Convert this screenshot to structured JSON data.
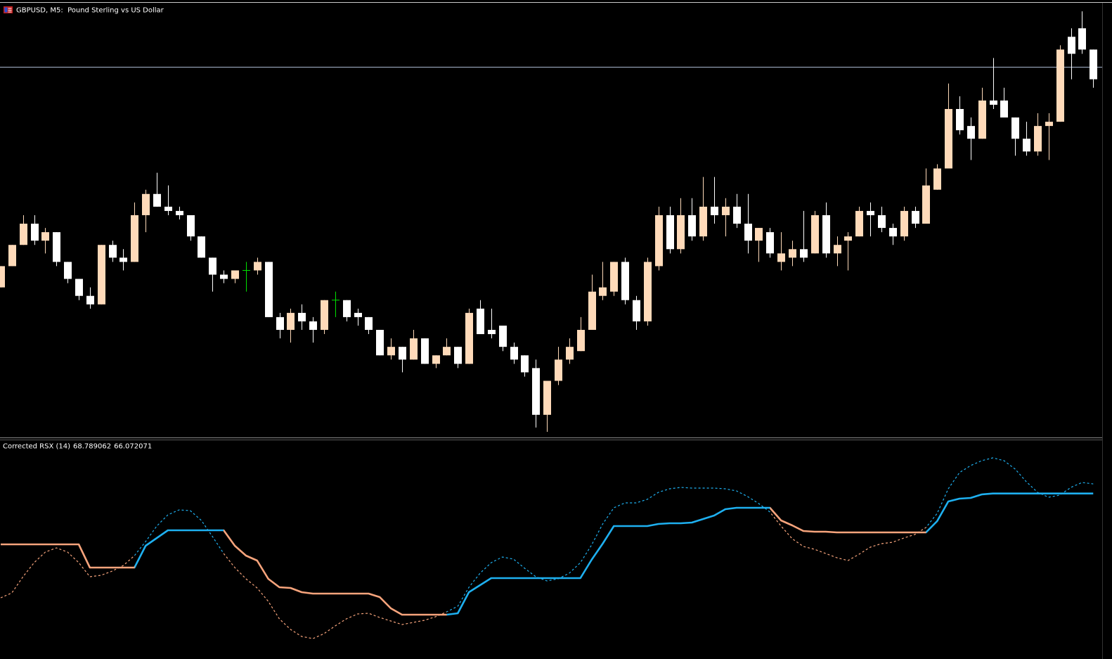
{
  "chart_data": [
    {
      "type": "candlestick",
      "title": "GBPUSD, M5:  Pound Sterling vs US Dollar",
      "open": [
        1.2637,
        1.2642,
        1.2647,
        1.2652,
        1.2648,
        1.265,
        1.2643,
        1.2639,
        1.2635,
        1.2633,
        1.2647,
        1.2644,
        1.2643,
        1.2654,
        1.2659,
        1.2656,
        1.2655,
        1.2654,
        1.2649,
        1.2644,
        1.264,
        1.2639,
        1.2641,
        1.2641,
        1.2643,
        1.263,
        1.2627,
        1.2631,
        1.2629,
        1.2627,
        1.2634,
        1.2634,
        1.2631,
        1.263,
        1.2627,
        1.2621,
        1.2623,
        1.262,
        1.2625,
        1.2619,
        1.2621,
        1.2623,
        1.2619,
        1.2632,
        1.2627,
        1.2628,
        1.2623,
        1.2621,
        1.2618,
        1.2607,
        1.2615,
        1.262,
        1.2622,
        1.2627,
        1.2635,
        1.2636,
        1.2643,
        1.2634,
        1.2629,
        1.2642,
        1.2654,
        1.2646,
        1.2654,
        1.2649,
        1.2656,
        1.2654,
        1.2656,
        1.2652,
        1.2648,
        1.265,
        1.2643,
        1.2644,
        1.2646,
        1.2645,
        1.2654,
        1.2645,
        1.2648,
        1.2649,
        1.2655,
        1.2654,
        1.2651,
        1.2649,
        1.2655,
        1.2652,
        1.266,
        1.2665,
        1.2679,
        1.2675,
        1.2672,
        1.2681,
        1.2681,
        1.2677,
        1.2672,
        1.2669,
        1.2675,
        1.2676,
        1.2696,
        1.2698,
        1.2693
      ],
      "high": [
        1.2642,
        1.2647,
        1.2654,
        1.2654,
        1.2651,
        1.265,
        1.2643,
        1.2639,
        1.2637,
        1.2647,
        1.2648,
        1.2646,
        1.2657,
        1.266,
        1.2664,
        1.2661,
        1.2656,
        1.2654,
        1.2649,
        1.2644,
        1.2641,
        1.2641,
        1.2643,
        1.2644,
        1.2643,
        1.2631,
        1.2632,
        1.2633,
        1.263,
        1.2634,
        1.2636,
        1.2634,
        1.2632,
        1.263,
        1.2627,
        1.2625,
        1.2623,
        1.2627,
        1.2625,
        1.2621,
        1.2625,
        1.2623,
        1.2632,
        1.2634,
        1.2632,
        1.2628,
        1.2624,
        1.2621,
        1.262,
        1.2615,
        1.2623,
        1.2625,
        1.263,
        1.264,
        1.2643,
        1.2643,
        1.2644,
        1.2635,
        1.2644,
        1.2656,
        1.2656,
        1.2658,
        1.2658,
        1.2663,
        1.2663,
        1.2658,
        1.2659,
        1.2659,
        1.2651,
        1.2651,
        1.265,
        1.2648,
        1.2655,
        1.2655,
        1.2657,
        1.2649,
        1.265,
        1.2656,
        1.2657,
        1.2656,
        1.2652,
        1.2656,
        1.2656,
        1.2665,
        1.2666,
        1.2685,
        1.2682,
        1.2677,
        1.2684,
        1.2691,
        1.2684,
        1.2677,
        1.2676,
        1.2678,
        1.2678,
        1.2694,
        1.2698,
        1.2702,
        1.2693
      ],
      "low": [
        1.2637,
        1.2642,
        1.2647,
        1.2647,
        1.2645,
        1.2642,
        1.2638,
        1.2634,
        1.2632,
        1.2633,
        1.2643,
        1.2641,
        1.2643,
        1.265,
        1.2656,
        1.2654,
        1.2653,
        1.2648,
        1.2644,
        1.2636,
        1.2638,
        1.2638,
        1.2636,
        1.264,
        1.263,
        1.2625,
        1.2624,
        1.2627,
        1.2624,
        1.2626,
        1.263,
        1.2629,
        1.2628,
        1.2626,
        1.2621,
        1.262,
        1.2617,
        1.262,
        1.2619,
        1.2618,
        1.2621,
        1.2618,
        1.2619,
        1.2626,
        1.2625,
        1.2622,
        1.2619,
        1.2616,
        1.2604,
        1.2603,
        1.2614,
        1.2619,
        1.2622,
        1.2627,
        1.2634,
        1.2635,
        1.2633,
        1.2627,
        1.2628,
        1.2641,
        1.2645,
        1.2645,
        1.2648,
        1.2648,
        1.2652,
        1.2649,
        1.2651,
        1.2645,
        1.2643,
        1.2644,
        1.2641,
        1.2642,
        1.2643,
        1.2645,
        1.2644,
        1.2642,
        1.2641,
        1.2649,
        1.2649,
        1.265,
        1.2647,
        1.2648,
        1.2651,
        1.2652,
        1.266,
        1.2665,
        1.2673,
        1.2667,
        1.2672,
        1.2679,
        1.2677,
        1.2668,
        1.2668,
        1.2668,
        1.2667,
        1.2676,
        1.2686,
        1.2692,
        1.2684
      ],
      "close": [
        1.2642,
        1.2647,
        1.2652,
        1.2648,
        1.265,
        1.2643,
        1.2639,
        1.2635,
        1.2633,
        1.2647,
        1.2644,
        1.2643,
        1.2654,
        1.2659,
        1.2656,
        1.2655,
        1.2654,
        1.2649,
        1.2644,
        1.264,
        1.2639,
        1.2641,
        1.2641,
        1.2643,
        1.263,
        1.2627,
        1.2631,
        1.2629,
        1.2627,
        1.2634,
        1.2634,
        1.263,
        1.263,
        1.2627,
        1.2621,
        1.2623,
        1.262,
        1.2625,
        1.2619,
        1.2621,
        1.2623,
        1.2619,
        1.2631,
        1.2626,
        1.2626,
        1.2623,
        1.262,
        1.2617,
        1.2607,
        1.2615,
        1.262,
        1.2623,
        1.2627,
        1.2636,
        1.2637,
        1.2643,
        1.2634,
        1.2629,
        1.2643,
        1.2654,
        1.2646,
        1.2654,
        1.2649,
        1.2656,
        1.2654,
        1.2656,
        1.2652,
        1.2648,
        1.2651,
        1.2645,
        1.2645,
        1.2646,
        1.2644,
        1.2654,
        1.2645,
        1.2647,
        1.2649,
        1.2655,
        1.2654,
        1.2651,
        1.2649,
        1.2655,
        1.2652,
        1.2661,
        1.2665,
        1.2679,
        1.2674,
        1.2672,
        1.2681,
        1.268,
        1.2677,
        1.2672,
        1.2669,
        1.2675,
        1.2676,
        1.2693,
        1.2692,
        1.2693,
        1.2686
      ],
      "ylim": [
        1.2602,
        1.2704
      ],
      "up_color": "#ffdab9",
      "down_color": "#ffffff",
      "doji_color": "#00e000",
      "hline": {
        "value": 1.2689,
        "color": "#a9b9d1"
      }
    },
    {
      "type": "line",
      "title": "Corrected RSX (14)",
      "ylim": [
        21.4,
        78.4
      ],
      "up_color": "#1eb0f0",
      "down_color": "#f7a47c",
      "series": [
        {
          "style": "dotted",
          "values": [
            36.4,
            37.8,
            42.4,
            46.4,
            49.4,
            50.6,
            49.4,
            46.4,
            42.4,
            42.8,
            44.0,
            45.6,
            48.4,
            52.4,
            56.8,
            60.0,
            61.4,
            61.2,
            58.4,
            53.8,
            49.0,
            45.0,
            41.8,
            39.2,
            35.4,
            30.4,
            27.4,
            25.4,
            24.8,
            26.2,
            28.4,
            30.4,
            31.8,
            32.0,
            30.8,
            29.8,
            28.8,
            29.4,
            30.0,
            31.0,
            32.4,
            34.0,
            39.4,
            43.4,
            46.4,
            48.0,
            47.4,
            44.8,
            42.4,
            41.2,
            41.8,
            43.4,
            46.4,
            51.4,
            57.4,
            62.0,
            63.4,
            63.4,
            64.4,
            66.4,
            67.4,
            67.8,
            67.6,
            67.6,
            67.6,
            67.4,
            66.8,
            65.2,
            63.2,
            60.8,
            56.8,
            53.2,
            51.0,
            50.2,
            49.0,
            47.8,
            47.0,
            48.8,
            50.8,
            51.8,
            52.2,
            53.4,
            54.4,
            56.4,
            60.4,
            67.4,
            72.0,
            74.0,
            75.4,
            76.2,
            75.4,
            73.0,
            69.4,
            66.4,
            65.0,
            65.6,
            67.8,
            69.2,
            68.789062
          ]
        },
        {
          "style": "solid",
          "values": [
            51.6,
            51.6,
            51.6,
            51.6,
            51.6,
            51.6,
            51.6,
            51.6,
            45.0,
            45.0,
            45.0,
            45.0,
            45.0,
            51.2,
            53.4,
            55.6,
            55.6,
            55.6,
            55.6,
            55.6,
            55.6,
            51.2,
            48.4,
            47.0,
            41.8,
            39.4,
            39.2,
            38.0,
            37.6,
            37.6,
            37.6,
            37.6,
            37.6,
            37.6,
            36.6,
            33.4,
            31.6,
            31.6,
            31.6,
            31.6,
            31.6,
            32.0,
            38.0,
            40.0,
            42.0,
            42.0,
            42.0,
            42.0,
            42.0,
            42.0,
            42.0,
            42.0,
            42.0,
            47.2,
            51.8,
            56.8,
            56.8,
            56.8,
            56.8,
            57.4,
            57.6,
            57.6,
            57.8,
            58.8,
            59.8,
            61.6,
            62.0,
            62.0,
            62.0,
            62.0,
            58.4,
            57.0,
            55.4,
            55.2,
            55.2,
            55.0,
            55.0,
            55.0,
            55.0,
            55.0,
            55.0,
            55.0,
            55.0,
            55.0,
            58.2,
            63.8,
            64.6,
            64.8,
            65.8,
            66.07,
            66.07,
            66.07,
            66.07,
            66.07,
            66.07,
            66.07,
            66.07,
            66.07,
            66.072071
          ]
        }
      ]
    }
  ]
}
